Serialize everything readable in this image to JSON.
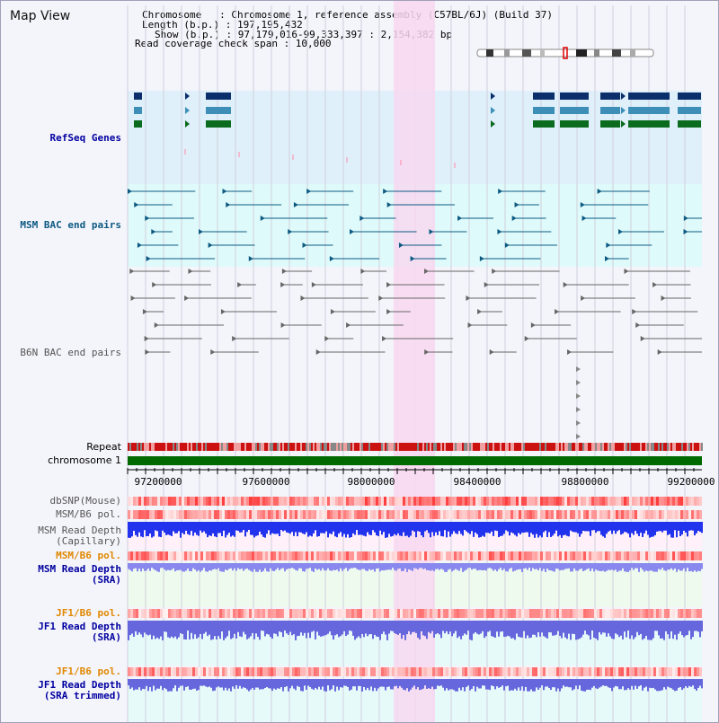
{
  "header": {
    "title": "Map View",
    "info_lines": [
      "Chromosome   : Chromosome 1, reference assembly (C57BL/6J) (Build 37)",
      "Length (b.p.) : 197,195,432",
      "Show (b.p.) : 97,179,016-99,333,397 : 2,154,382 bp",
      "Read coverage check span : 10,000"
    ]
  },
  "tracks": {
    "refseq": "RefSeq Genes",
    "msm_bac": "MSM BAC end pairs",
    "b6n_bac": "B6N BAC end pairs",
    "repeat": "Repeat",
    "chromosome": "chromosome 1",
    "dbsnp": "dbSNP(Mouse)",
    "msm_b6_pol": "MSM/B6 pol.",
    "msm_read_depth_cap": "MSM Read Depth\n(Capillary)",
    "msm_b6_pol_2": "MSM/B6 pol.",
    "msm_read_depth_sra": "MSM Read Depth\n(SRA)",
    "jf1_b6_pol": "JF1/B6 pol.",
    "jf1_read_depth_sra": "JF1 Read Depth\n(SRA)",
    "jf1_b6_pol_2": "JF1/B6 pol.",
    "jf1_read_depth_trim": "JF1 Read Depth\n(SRA trimmed)"
  },
  "axis": {
    "ticks": [
      "97200000",
      "97600000",
      "98000000",
      "98400000",
      "98800000",
      "99200000"
    ]
  },
  "colors": {
    "highlight": "#f8d8f0",
    "refseq_bg": "#dff0fa",
    "msm_bg": "#dffafa",
    "chromosome_bar": "#006a00",
    "label_blue": "#0000a0",
    "label_orange": "#e08800"
  }
}
